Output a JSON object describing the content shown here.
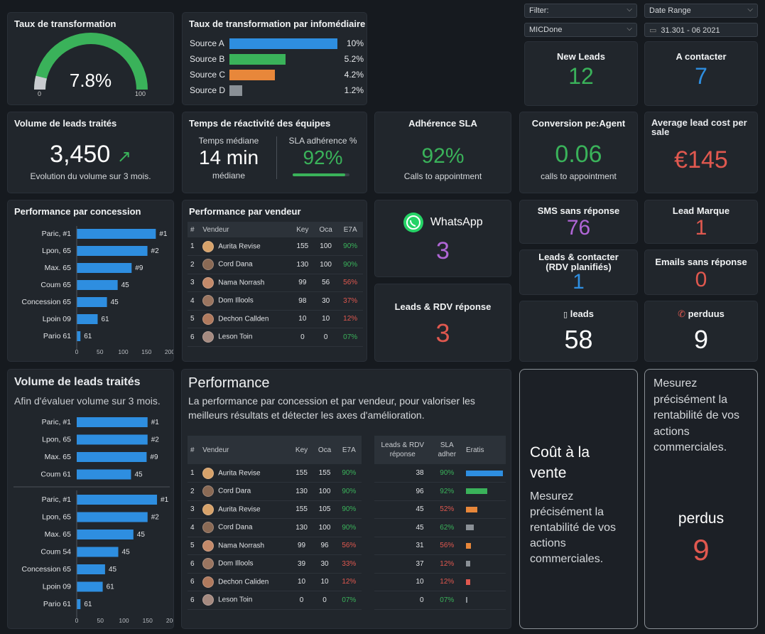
{
  "filters": {
    "filter_label": "Filter:",
    "date_range_label": "Date Range",
    "micd_value": "MICDone",
    "date_value": "31.301 - 06 2021"
  },
  "conversion_rate": {
    "title": "Taux de transformation",
    "value": "7.8%",
    "min": "0",
    "max": "100",
    "fraction": 0.078
  },
  "by_intermediary": {
    "title": "Taux de transformation par infomédiaire",
    "rows": [
      {
        "label": "Source A",
        "value": "10%",
        "pct": 10,
        "color": "#2e8ee0"
      },
      {
        "label": "Source B",
        "value": "5.2%",
        "pct": 5.2,
        "color": "#3ab25a"
      },
      {
        "label": "Source C",
        "value": "4.2%",
        "pct": 4.2,
        "color": "#e8873a"
      },
      {
        "label": "Source D",
        "value": "1.2%",
        "pct": 1.2,
        "color": "#8a9096"
      }
    ]
  },
  "kpis": {
    "new_leads": {
      "label": "New Leads",
      "value": "12"
    },
    "to_contact": {
      "label": "A contacter",
      "value": "7"
    },
    "volume": {
      "title": "Volume de leads traités",
      "value": "3,450",
      "arrow": "↗",
      "sub": "Evolution du volume sur 3 mois."
    },
    "reactivity": {
      "title": "Temps de réactivité des équipes",
      "left_label": "Temps médiane",
      "left_value": "14 min",
      "left_sub": "médiane",
      "right_label": "SLA adhérence %",
      "right_value": "92%",
      "right_fraction": 0.92
    },
    "sla": {
      "title": "Adhérence SLA",
      "value": "92%",
      "sub": "Calls to appointment"
    },
    "conv_agent": {
      "title": "Conversion pe:Agent",
      "value": "0.06",
      "sub": "calls to appointment"
    },
    "avg_cost": {
      "title": "Average lead cost per sale",
      "value": "€145"
    },
    "whatsapp": {
      "label": "WhatsApp",
      "value": "3"
    },
    "sms": {
      "label": "SMS sans réponse",
      "value": "76"
    },
    "lead_marque": {
      "label": "Lead Marque",
      "value": "1"
    },
    "leads_contact": {
      "label": "Leads & contacter (RDV planifiés)",
      "value": "1"
    },
    "emails": {
      "label": "Emails sans réponse",
      "value": "0"
    },
    "rdv_reponse": {
      "label": "Leads & RDV réponse",
      "value": "3"
    },
    "leads": {
      "label": "leads",
      "value": "58"
    },
    "perdus": {
      "label": "perduus",
      "value": "9"
    }
  },
  "perf_concession": {
    "title": "Performance par concession",
    "axis_ticks": [
      "0",
      "50",
      "100",
      "150",
      "200"
    ],
    "rows": [
      {
        "label": "Paric, #1",
        "value": 170,
        "tag": "#1"
      },
      {
        "label": "Lpon, 65",
        "value": 152,
        "tag": "#2"
      },
      {
        "label": "Max. 65",
        "value": 118,
        "tag": "#9"
      },
      {
        "label": "Coum 65",
        "value": 88,
        "tag": "45"
      },
      {
        "label": "Concession 65",
        "value": 65,
        "tag": "45"
      },
      {
        "label": "Lpoin 09",
        "value": 45,
        "tag": "61"
      },
      {
        "label": "Pario 61",
        "value": 8,
        "tag": "61"
      }
    ]
  },
  "perf_vendeur": {
    "title": "Performance par vendeur",
    "headers": [
      "#",
      "Vendeur",
      "Key",
      "Oca",
      "E7A"
    ],
    "rows": [
      {
        "n": "1",
        "name": "Aurita Revise",
        "key": "155",
        "oca": "100",
        "pct": "90%",
        "color": "#3ab25a",
        "av": "#d7a26a"
      },
      {
        "n": "2",
        "name": "Cord Dana",
        "key": "130",
        "oca": "100",
        "pct": "90%",
        "color": "#3ab25a",
        "av": "#8a6a55"
      },
      {
        "n": "3",
        "name": "Nama Norrash",
        "key": "99",
        "oca": "56",
        "pct": "56%",
        "color": "#e0584f",
        "av": "#c48a6a"
      },
      {
        "n": "4",
        "name": "Dom Illools",
        "key": "98",
        "oca": "30",
        "pct": "37%",
        "color": "#e0584f",
        "av": "#9a7560"
      },
      {
        "n": "5",
        "name": "Dechon Callden",
        "key": "10",
        "oca": "10",
        "pct": "12%",
        "color": "#e0584f",
        "av": "#b07a5e"
      },
      {
        "n": "6",
        "name": "Leson Toin",
        "key": "0",
        "oca": "0",
        "pct": "07%",
        "color": "#3ab25a",
        "av": "#a58a80"
      }
    ]
  },
  "volume_chart": {
    "title": "Volume de leads traités",
    "subtitle": "Afin d'évaluer volume sur 3 mois.",
    "axis_ticks": [
      "0",
      "50",
      "100",
      "150",
      "200"
    ],
    "group1": [
      {
        "label": "Paric, #1",
        "value": 150,
        "tag": "#1"
      },
      {
        "label": "Lpon, 65",
        "value": 150,
        "tag": "#2"
      },
      {
        "label": "Max. 65",
        "value": 148,
        "tag": "#9"
      },
      {
        "label": "Coum 61",
        "value": 115,
        "tag": "45"
      }
    ],
    "group2": [
      {
        "label": "Paric, #1",
        "value": 170,
        "tag": "#1"
      },
      {
        "label": "Lpon, 65",
        "value": 150,
        "tag": "#2"
      },
      {
        "label": "Max. 65",
        "value": 120,
        "tag": "45"
      },
      {
        "label": "Coum 54",
        "value": 88,
        "tag": "45"
      },
      {
        "label": "Concession 65",
        "value": 60,
        "tag": "45"
      },
      {
        "label": "Lpoin 09",
        "value": 55,
        "tag": "61"
      },
      {
        "label": "Pario 61",
        "value": 8,
        "tag": "61"
      }
    ]
  },
  "performance": {
    "title": "Performance",
    "desc": "La performance par concession et par vendeur, pour valoriser les meilleurs résultats et détecter les axes d'amélioration.",
    "headers": [
      "#",
      "Vendeur",
      "Key",
      "Oca",
      "E7A"
    ],
    "rows": [
      {
        "n": "1",
        "name": "Aurita Revise",
        "key": "155",
        "oca": "155",
        "pct": "90%",
        "color": "#3ab25a",
        "av": "#d7a26a"
      },
      {
        "n": "2",
        "name": "Cord Dara",
        "key": "130",
        "oca": "100",
        "pct": "90%",
        "color": "#3ab25a",
        "av": "#8a6a55"
      },
      {
        "n": "3",
        "name": "Aurita Revise",
        "key": "155",
        "oca": "105",
        "pct": "90%",
        "color": "#3ab25a",
        "av": "#d7a26a"
      },
      {
        "n": "4",
        "name": "Cord Dana",
        "key": "130",
        "oca": "100",
        "pct": "90%",
        "color": "#3ab25a",
        "av": "#8a6a55"
      },
      {
        "n": "5",
        "name": "Nama Norrash",
        "key": "99",
        "oca": "96",
        "pct": "56%",
        "color": "#e0584f",
        "av": "#c48a6a"
      },
      {
        "n": "6",
        "name": "Dom Illools",
        "key": "39",
        "oca": "30",
        "pct": "33%",
        "color": "#e0584f",
        "av": "#9a7560"
      },
      {
        "n": "6",
        "name": "Dechon Caliden",
        "key": "10",
        "oca": "10",
        "pct": "12%",
        "color": "#e0584f",
        "av": "#b07a5e"
      },
      {
        "n": "6",
        "name": "Leson Toin",
        "key": "0",
        "oca": "0",
        "pct": "07%",
        "color": "#3ab25a",
        "av": "#a58a80"
      }
    ]
  },
  "sla_table": {
    "headers": [
      "Leads & RDV réponse",
      "SLA adher",
      "Eratis"
    ],
    "rows": [
      {
        "v": "38",
        "p": "90%",
        "pc": "#3ab25a",
        "bar": 100,
        "bc": "#2e8ee0"
      },
      {
        "v": "96",
        "p": "92%",
        "pc": "#3ab25a",
        "bar": 58,
        "bc": "#3ab25a"
      },
      {
        "v": "45",
        "p": "52%",
        "pc": "#e0584f",
        "bar": 30,
        "bc": "#e8873a"
      },
      {
        "v": "45",
        "p": "62%",
        "pc": "#3ab25a",
        "bar": 22,
        "bc": "#8a9096"
      },
      {
        "v": "31",
        "p": "56%",
        "pc": "#e0584f",
        "bar": 14,
        "bc": "#e8873a"
      },
      {
        "v": "37",
        "p": "12%",
        "pc": "#e0584f",
        "bar": 12,
        "bc": "#8a9096"
      },
      {
        "v": "10",
        "p": "12%",
        "pc": "#e0584f",
        "bar": 11,
        "bc": "#e0584f"
      },
      {
        "v": "0",
        "p": "07%",
        "pc": "#3ab25a",
        "bar": 4,
        "bc": "#8a9096"
      }
    ]
  },
  "cout": {
    "title": "Coût à la vente",
    "text": "Mesurez précisément la rentabilité de vos actions commerciales."
  },
  "mesurez": {
    "text": "Mesurez précisément la rentabilité de vos actions commerciales.",
    "label": "perdus",
    "value": "9"
  }
}
